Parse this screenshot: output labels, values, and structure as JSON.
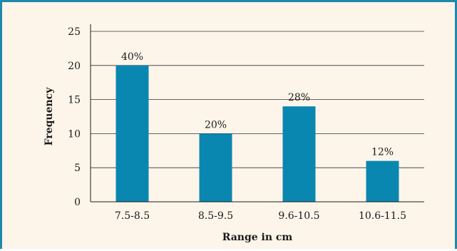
{
  "chart_data": {
    "type": "bar",
    "categories": [
      "7.5-8.5",
      "8.5-9.5",
      "9.6-10.5",
      "10.6-11.5"
    ],
    "values": [
      20,
      10,
      14,
      6
    ],
    "data_labels": [
      "40%",
      "20%",
      "28%",
      "12%"
    ],
    "xlabel": "Range in cm",
    "ylabel": "Frequency",
    "ylim": [
      0,
      25
    ],
    "yticks": [
      0,
      5,
      10,
      15,
      20,
      25
    ],
    "grid": true,
    "bar_color": "#0a87b0"
  }
}
